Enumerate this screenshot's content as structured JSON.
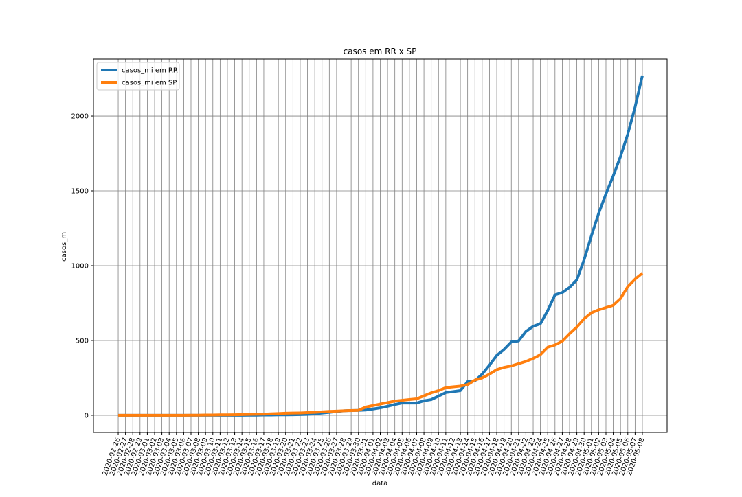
{
  "chart_data": {
    "type": "line",
    "title": "casos em RR x SP",
    "x_label": "data",
    "y_label": "casos_mi",
    "categories": [
      "2020-02-26",
      "2020-02-27",
      "2020-02-28",
      "2020-02-29",
      "2020-03-01",
      "2020-03-02",
      "2020-03-03",
      "2020-03-04",
      "2020-03-05",
      "2020-03-06",
      "2020-03-07",
      "2020-03-08",
      "2020-03-09",
      "2020-03-10",
      "2020-03-11",
      "2020-03-12",
      "2020-03-13",
      "2020-03-14",
      "2020-03-15",
      "2020-03-16",
      "2020-03-17",
      "2020-03-18",
      "2020-03-19",
      "2020-03-20",
      "2020-03-21",
      "2020-03-22",
      "2020-03-23",
      "2020-03-24",
      "2020-03-25",
      "2020-03-26",
      "2020-03-27",
      "2020-03-28",
      "2020-03-29",
      "2020-03-30",
      "2020-03-31",
      "2020-04-01",
      "2020-04-02",
      "2020-04-03",
      "2020-04-04",
      "2020-04-05",
      "2020-04-06",
      "2020-04-07",
      "2020-04-08",
      "2020-04-09",
      "2020-04-10",
      "2020-04-11",
      "2020-04-12",
      "2020-04-13",
      "2020-04-14",
      "2020-04-15",
      "2020-04-16",
      "2020-04-17",
      "2020-04-18",
      "2020-04-19",
      "2020-04-20",
      "2020-04-21",
      "2020-04-22",
      "2020-04-23",
      "2020-04-24",
      "2020-04-25",
      "2020-04-26",
      "2020-04-27",
      "2020-04-28",
      "2020-04-29",
      "2020-04-30",
      "2020-05-01",
      "2020-05-02",
      "2020-05-03",
      "2020-05-04",
      "2020-05-05",
      "2020-05-06",
      "2020-05-07",
      "2020-05-08"
    ],
    "series": [
      {
        "name": "casos_mi em RR",
        "color": "#1f77b4",
        "values": [
          0,
          0,
          0,
          0,
          0,
          0,
          0,
          0,
          0,
          0,
          0,
          0,
          0,
          0,
          0,
          0,
          0,
          0,
          1,
          1,
          2,
          2,
          3,
          3,
          4,
          5,
          6,
          10,
          15,
          20,
          25,
          30,
          32,
          33,
          35,
          42,
          50,
          60,
          72,
          82,
          82,
          82,
          97,
          105,
          128,
          152,
          158,
          165,
          225,
          230,
          275,
          335,
          400,
          440,
          490,
          497,
          560,
          595,
          612,
          700,
          805,
          820,
          855,
          905,
          1040,
          1200,
          1350,
          1480,
          1600,
          1730,
          1880,
          2060,
          2270
        ]
      },
      {
        "name": "casos_mi em SP",
        "color": "#ff7f0e",
        "values": [
          0,
          0,
          0,
          0,
          0,
          0,
          0,
          0,
          0,
          0,
          1,
          1,
          2,
          2,
          3,
          3,
          4,
          5,
          6,
          7,
          8,
          10,
          12,
          14,
          15,
          16,
          18,
          20,
          23,
          26,
          28,
          30,
          32,
          33,
          55,
          65,
          75,
          85,
          95,
          100,
          105,
          110,
          130,
          150,
          165,
          185,
          190,
          195,
          205,
          235,
          250,
          275,
          305,
          320,
          330,
          345,
          360,
          380,
          405,
          455,
          470,
          495,
          545,
          590,
          645,
          685,
          705,
          720,
          735,
          780,
          860,
          910,
          950
        ]
      }
    ],
    "ylim": [
      -115,
      2381
    ],
    "yticks": [
      0,
      500,
      1000,
      1500,
      2000
    ],
    "grid": true,
    "legend": "upper left"
  }
}
